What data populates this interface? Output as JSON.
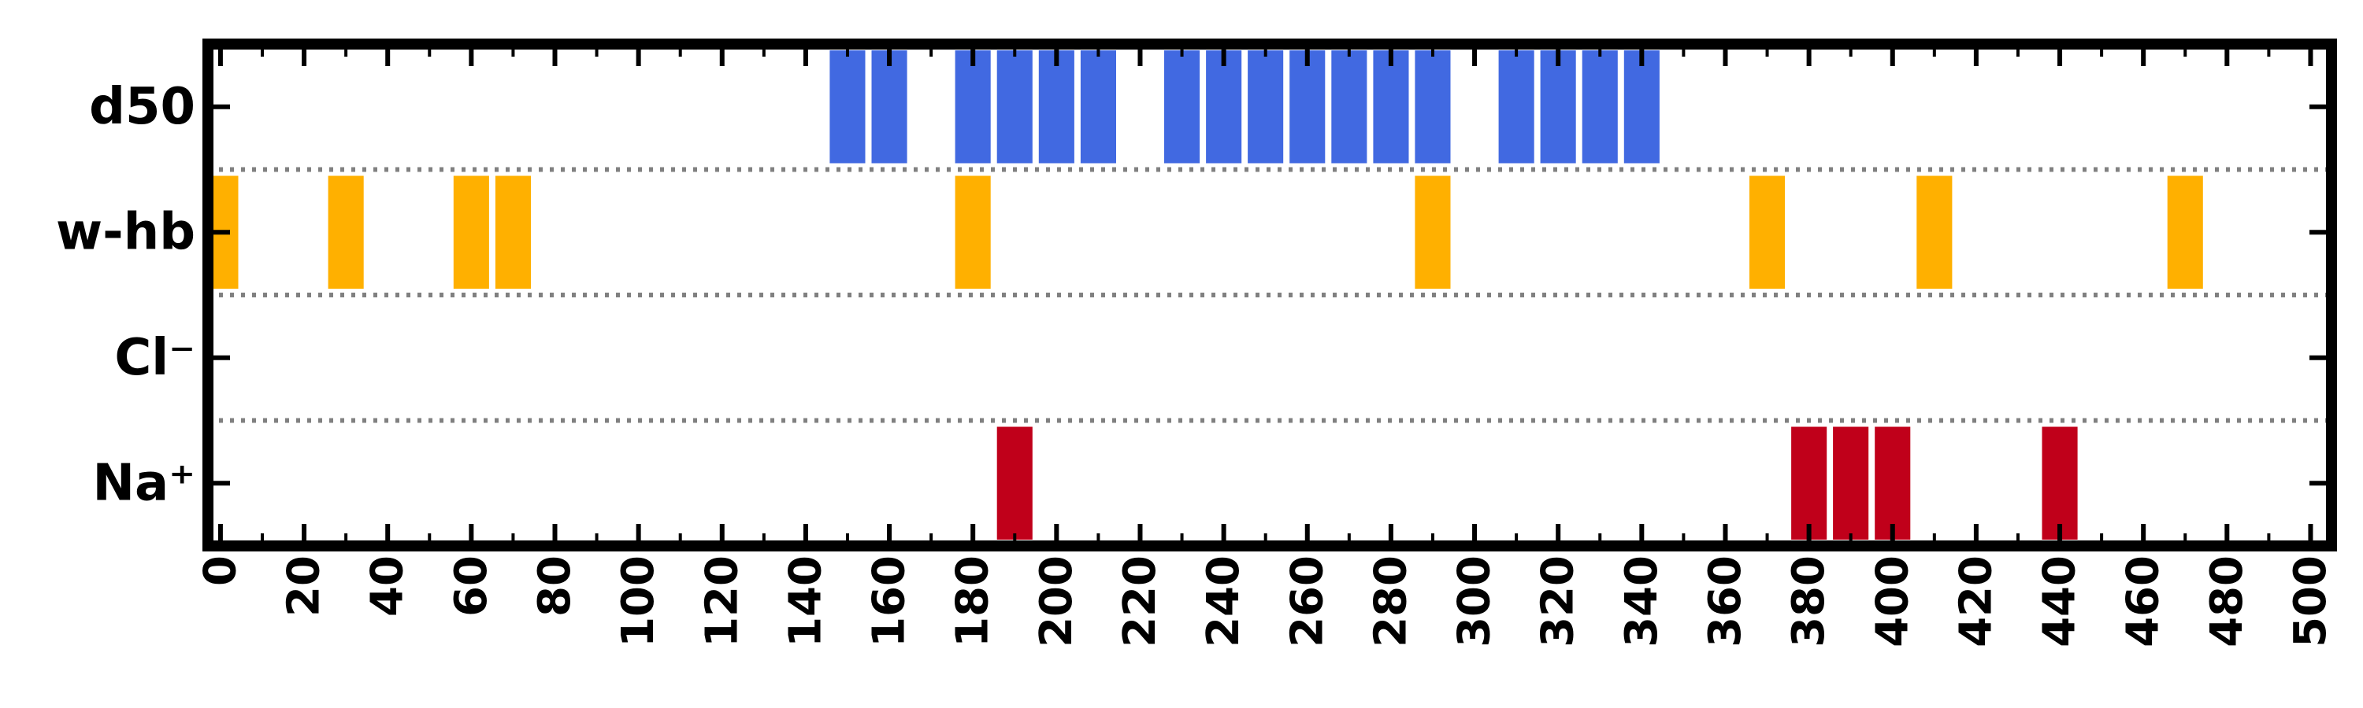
{
  "chart_data": {
    "type": "bar",
    "title": "",
    "xlabel": "",
    "ylabel": "",
    "xlim": [
      -3,
      505
    ],
    "bar_width": 8.5,
    "grid": false,
    "legend": "none",
    "x_ticks": [
      0,
      20,
      40,
      60,
      80,
      100,
      120,
      140,
      160,
      180,
      200,
      220,
      240,
      260,
      280,
      300,
      320,
      340,
      360,
      380,
      400,
      420,
      440,
      460,
      480,
      500
    ],
    "x_tick_labels": [
      "0",
      "20",
      "40",
      "60",
      "80",
      "100",
      "120",
      "140",
      "160",
      "180",
      "200",
      "220",
      "240",
      "260",
      "280",
      "300",
      "320",
      "340",
      "360",
      "380",
      "400",
      "420",
      "440",
      "460",
      "480",
      "500"
    ],
    "x_minor_ticks": [
      10,
      30,
      50,
      70,
      90,
      110,
      130,
      150,
      170,
      190,
      210,
      230,
      250,
      270,
      290,
      310,
      330,
      350,
      370,
      390,
      410,
      430,
      450,
      470,
      490
    ],
    "rows": [
      {
        "label": "d50",
        "color": "#4169e1",
        "x": [
          150,
          160,
          180,
          190,
          200,
          210,
          230,
          240,
          250,
          260,
          270,
          280,
          290,
          310,
          320,
          330,
          340
        ]
      },
      {
        "label": "w-hb",
        "color": "#ffb000",
        "x": [
          0,
          30,
          60,
          70,
          180,
          290,
          370,
          410,
          470
        ]
      },
      {
        "label": "Cl⁻",
        "color": "#ffb000",
        "x": []
      },
      {
        "label": "Na⁺",
        "color": "#c0001a",
        "x": [
          190,
          380,
          390,
          400,
          440
        ]
      }
    ]
  }
}
